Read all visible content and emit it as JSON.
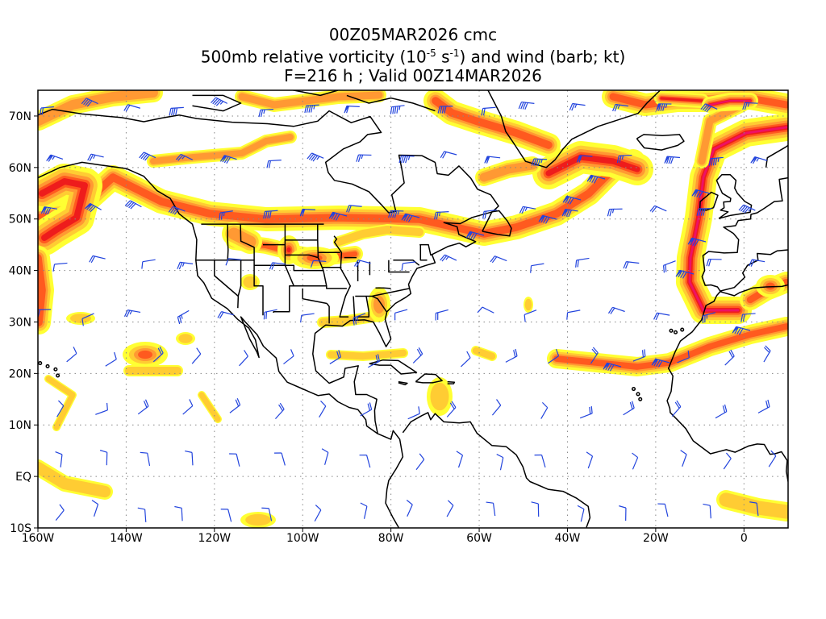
{
  "title": {
    "line1": "00Z05MAR2026 cmc",
    "line2_prefix": "500mb relative vorticity (10",
    "line2_exp1": "-5",
    "line2_mid": " s",
    "line2_exp2": "-1",
    "line2_suffix": ") and wind (barb; kt)",
    "line3": "F=216 h ; Valid 00Z14MAR2026"
  },
  "axes": {
    "lat_labels": [
      "70N",
      "60N",
      "50N",
      "40N",
      "30N",
      "20N",
      "10N",
      "EQ",
      "10S"
    ],
    "lon_labels": [
      "160W",
      "140W",
      "120W",
      "100W",
      "80W",
      "60W",
      "40W",
      "20W",
      "0"
    ]
  },
  "colors": {
    "yellow": "#ffff33",
    "light_orange": "#ffcc33",
    "orange": "#ff9933",
    "red_orange": "#ff5a1f",
    "red": "#ee1c1c",
    "magenta": "#ee1166",
    "barb": "#2244dd",
    "coast": "#000000",
    "grid": "#888888"
  }
}
